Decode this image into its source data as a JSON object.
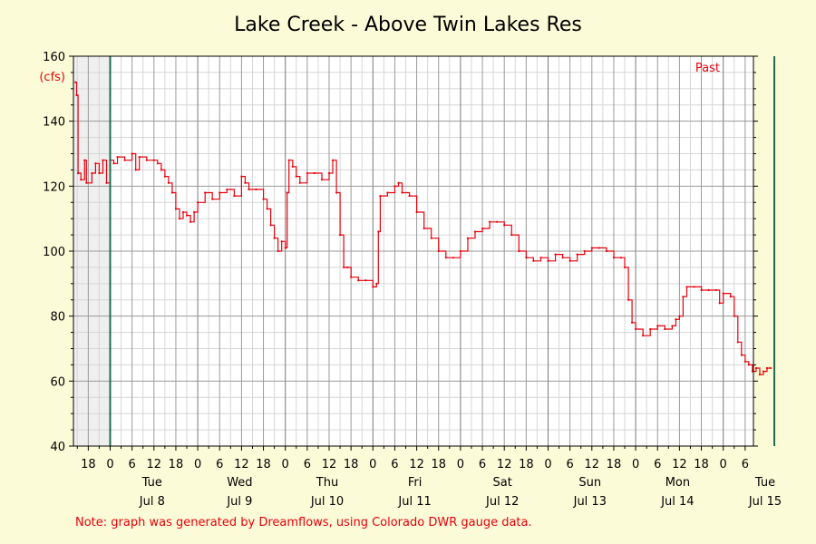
{
  "chart_data": {
    "type": "line",
    "title": "Lake Creek - Above Twin Lakes Res",
    "ylabel": "(cfs)",
    "ylim": [
      40,
      160
    ],
    "yticks": [
      40,
      60,
      80,
      100,
      120,
      140,
      160
    ],
    "x_hour_ticks": [
      "18",
      "0",
      "6",
      "12",
      "18",
      "0",
      "6",
      "12",
      "18",
      "0",
      "6",
      "12",
      "18",
      "0",
      "6",
      "12",
      "18",
      "0",
      "6",
      "12",
      "18",
      "0",
      "6",
      "12",
      "18",
      "0",
      "6",
      "12",
      "18",
      "0",
      "6",
      "12",
      "18",
      "0",
      "6"
    ],
    "day_labels": [
      {
        "weekday": "Tue",
        "date": "Jul 8"
      },
      {
        "weekday": "Wed",
        "date": "Jul 9"
      },
      {
        "weekday": "Thu",
        "date": "Jul 10"
      },
      {
        "weekday": "Fri",
        "date": "Jul 11"
      },
      {
        "weekday": "Sat",
        "date": "Jul 12"
      },
      {
        "weekday": "Sun",
        "date": "Jul 13"
      },
      {
        "weekday": "Mon",
        "date": "Jul 14"
      },
      {
        "weekday": "Tue",
        "date": "Jul 15"
      }
    ],
    "past_label": "Past",
    "grid": true,
    "series": [
      {
        "color": "#e8000b",
        "x_unit": "hours since Jul 8 00:00",
        "points": [
          [
            -9.5,
            152
          ],
          [
            -9.2,
            148
          ],
          [
            -8.8,
            124
          ],
          [
            -8,
            122
          ],
          [
            -7,
            128
          ],
          [
            -6.5,
            121
          ],
          [
            -5,
            124
          ],
          [
            -4,
            127
          ],
          [
            -3,
            124
          ],
          [
            -2,
            128
          ],
          [
            -1,
            121
          ],
          [
            0,
            128
          ],
          [
            1,
            127
          ],
          [
            2,
            129
          ],
          [
            4,
            128
          ],
          [
            6,
            130
          ],
          [
            7,
            125
          ],
          [
            8,
            129
          ],
          [
            10,
            128
          ],
          [
            12,
            128
          ],
          [
            13,
            127
          ],
          [
            14,
            125
          ],
          [
            15,
            123
          ],
          [
            16,
            121
          ],
          [
            17,
            118
          ],
          [
            18,
            113
          ],
          [
            19,
            110
          ],
          [
            20,
            112
          ],
          [
            21,
            111
          ],
          [
            22,
            109
          ],
          [
            23,
            112
          ],
          [
            24,
            115
          ],
          [
            26,
            118
          ],
          [
            28,
            116
          ],
          [
            30,
            118
          ],
          [
            32,
            119
          ],
          [
            34,
            117
          ],
          [
            36,
            123
          ],
          [
            37,
            121
          ],
          [
            38,
            119
          ],
          [
            40,
            119
          ],
          [
            42,
            116
          ],
          [
            43,
            113
          ],
          [
            44,
            108
          ],
          [
            45,
            104
          ],
          [
            46,
            100
          ],
          [
            47,
            103
          ],
          [
            48,
            101
          ],
          [
            48.5,
            118
          ],
          [
            49,
            128
          ],
          [
            50,
            126
          ],
          [
            51,
            123
          ],
          [
            52,
            121
          ],
          [
            54,
            124
          ],
          [
            56,
            124
          ],
          [
            58,
            122
          ],
          [
            60,
            124
          ],
          [
            61,
            128
          ],
          [
            62,
            118
          ],
          [
            63,
            105
          ],
          [
            64,
            95
          ],
          [
            65,
            95
          ],
          [
            66,
            92
          ],
          [
            68,
            91
          ],
          [
            70,
            91
          ],
          [
            72,
            89
          ],
          [
            73,
            90
          ],
          [
            73.5,
            106
          ],
          [
            74,
            117
          ],
          [
            76,
            118
          ],
          [
            78,
            120
          ],
          [
            79,
            121
          ],
          [
            80,
            118
          ],
          [
            82,
            117
          ],
          [
            84,
            112
          ],
          [
            86,
            107
          ],
          [
            88,
            104
          ],
          [
            90,
            100
          ],
          [
            92,
            98
          ],
          [
            94,
            98
          ],
          [
            96,
            100
          ],
          [
            98,
            104
          ],
          [
            100,
            106
          ],
          [
            102,
            107
          ],
          [
            104,
            109
          ],
          [
            106,
            109
          ],
          [
            108,
            108
          ],
          [
            110,
            105
          ],
          [
            112,
            100
          ],
          [
            114,
            98
          ],
          [
            116,
            97
          ],
          [
            118,
            98
          ],
          [
            120,
            97
          ],
          [
            122,
            99
          ],
          [
            124,
            98
          ],
          [
            126,
            97
          ],
          [
            128,
            99
          ],
          [
            130,
            100
          ],
          [
            132,
            101
          ],
          [
            134,
            101
          ],
          [
            136,
            100
          ],
          [
            138,
            98
          ],
          [
            140,
            98
          ],
          [
            141,
            95
          ],
          [
            142,
            85
          ],
          [
            143,
            78
          ],
          [
            144,
            76
          ],
          [
            146,
            74
          ],
          [
            148,
            76
          ],
          [
            150,
            77
          ],
          [
            152,
            76
          ],
          [
            154,
            77
          ],
          [
            155,
            79
          ],
          [
            156,
            80
          ],
          [
            157,
            86
          ],
          [
            158,
            89
          ],
          [
            160,
            89
          ],
          [
            162,
            88
          ],
          [
            164,
            88
          ],
          [
            166,
            88
          ],
          [
            167,
            84
          ],
          [
            168,
            87
          ],
          [
            170,
            86
          ],
          [
            171,
            80
          ],
          [
            172,
            72
          ],
          [
            173,
            68
          ],
          [
            174,
            66
          ],
          [
            175,
            65
          ],
          [
            176,
            63
          ],
          [
            177,
            64
          ],
          [
            178,
            62
          ],
          [
            179,
            63
          ],
          [
            180,
            64
          ],
          [
            181,
            64
          ]
        ]
      }
    ]
  },
  "note": "Note: graph was generated by Dreamflows, using Colorado DWR gauge data.",
  "colors": {
    "background": "#fcfbd8",
    "plot_bg": "#ffffff",
    "shade": "#efefef",
    "series": "#e8000b",
    "marker_line": "#1f6b4f",
    "grid_major": "#9a9a9a",
    "grid_minor": "#d6d6d6"
  }
}
